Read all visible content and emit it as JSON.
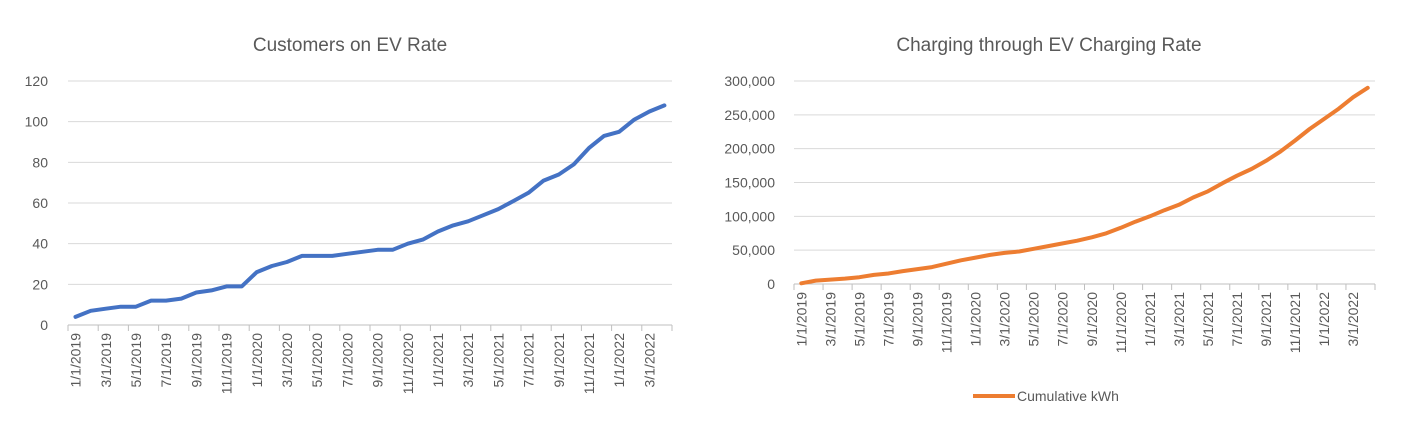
{
  "chart_data": [
    {
      "type": "line",
      "title": "Customers on EV Rate",
      "xlabel": "",
      "ylabel": "",
      "ylim": [
        0,
        120
      ],
      "yticks": [
        "0",
        "20",
        "40",
        "60",
        "80",
        "100",
        "120"
      ],
      "grid": true,
      "legend": "none",
      "color": "#4472C4",
      "x": [
        "1/1/2019",
        "2/1/2019",
        "3/1/2019",
        "4/1/2019",
        "5/1/2019",
        "6/1/2019",
        "7/1/2019",
        "8/1/2019",
        "9/1/2019",
        "10/1/2019",
        "11/1/2019",
        "12/1/2019",
        "1/1/2020",
        "2/1/2020",
        "3/1/2020",
        "4/1/2020",
        "5/1/2020",
        "6/1/2020",
        "7/1/2020",
        "8/1/2020",
        "9/1/2020",
        "10/1/2020",
        "11/1/2020",
        "12/1/2020",
        "1/1/2021",
        "2/1/2021",
        "3/1/2021",
        "4/1/2021",
        "5/1/2021",
        "6/1/2021",
        "7/1/2021",
        "8/1/2021",
        "9/1/2021",
        "10/1/2021",
        "11/1/2021",
        "12/1/2021",
        "1/1/2022",
        "2/1/2022",
        "3/1/2022",
        "4/1/2022"
      ],
      "xtick_labels": [
        "1/1/2019",
        "3/1/2019",
        "5/1/2019",
        "7/1/2019",
        "9/1/2019",
        "11/1/2019",
        "1/1/2020",
        "3/1/2020",
        "5/1/2020",
        "7/1/2020",
        "9/1/2020",
        "11/1/2020",
        "1/1/2021",
        "3/1/2021",
        "5/1/2021",
        "7/1/2021",
        "9/1/2021",
        "11/1/2021",
        "1/1/2022",
        "3/1/2022"
      ],
      "series": [
        {
          "values": [
            4,
            7,
            8,
            9,
            9,
            12,
            12,
            13,
            16,
            17,
            19,
            19,
            26,
            29,
            31,
            34,
            34,
            34,
            35,
            36,
            37,
            37,
            40,
            42,
            46,
            49,
            51,
            54,
            57,
            61,
            65,
            71,
            74,
            79,
            87,
            93,
            95,
            101,
            105,
            108
          ]
        }
      ]
    },
    {
      "type": "line",
      "title": "Charging through EV Charging Rate",
      "xlabel": "",
      "ylabel": "",
      "ylim": [
        0,
        300000
      ],
      "yticks": [
        "0",
        "50,000",
        "100,000",
        "150,000",
        "200,000",
        "250,000",
        "300,000"
      ],
      "grid": true,
      "legend": "bottom",
      "color": "#ED7D31",
      "x": [
        "1/1/2019",
        "2/1/2019",
        "3/1/2019",
        "4/1/2019",
        "5/1/2019",
        "6/1/2019",
        "7/1/2019",
        "8/1/2019",
        "9/1/2019",
        "10/1/2019",
        "11/1/2019",
        "12/1/2019",
        "1/1/2020",
        "2/1/2020",
        "3/1/2020",
        "4/1/2020",
        "5/1/2020",
        "6/1/2020",
        "7/1/2020",
        "8/1/2020",
        "9/1/2020",
        "10/1/2020",
        "11/1/2020",
        "12/1/2020",
        "1/1/2021",
        "2/1/2021",
        "3/1/2021",
        "4/1/2021",
        "5/1/2021",
        "6/1/2021",
        "7/1/2021",
        "8/1/2021",
        "9/1/2021",
        "10/1/2021",
        "11/1/2021",
        "12/1/2021",
        "1/1/2022",
        "2/1/2022",
        "3/1/2022",
        "4/1/2022"
      ],
      "xtick_labels": [
        "1/1/2019",
        "3/1/2019",
        "5/1/2019",
        "7/1/2019",
        "9/1/2019",
        "11/1/2019",
        "1/1/2020",
        "3/1/2020",
        "5/1/2020",
        "7/1/2020",
        "9/1/2020",
        "11/1/2020",
        "1/1/2021",
        "3/1/2021",
        "5/1/2021",
        "7/1/2021",
        "9/1/2021",
        "11/1/2021",
        "1/1/2022",
        "3/1/2022"
      ],
      "series": [
        {
          "name": "Cumulative kWh",
          "values": [
            1000,
            5000,
            6500,
            8000,
            10000,
            13500,
            15500,
            19000,
            22000,
            25000,
            30000,
            35000,
            39000,
            43000,
            46000,
            48000,
            52000,
            56000,
            60000,
            64000,
            69000,
            75000,
            83000,
            92000,
            100000,
            109000,
            117000,
            128000,
            137000,
            149000,
            160000,
            170000,
            182000,
            196000,
            212000,
            229000,
            244000,
            259000,
            276000,
            290000
          ]
        }
      ]
    }
  ]
}
